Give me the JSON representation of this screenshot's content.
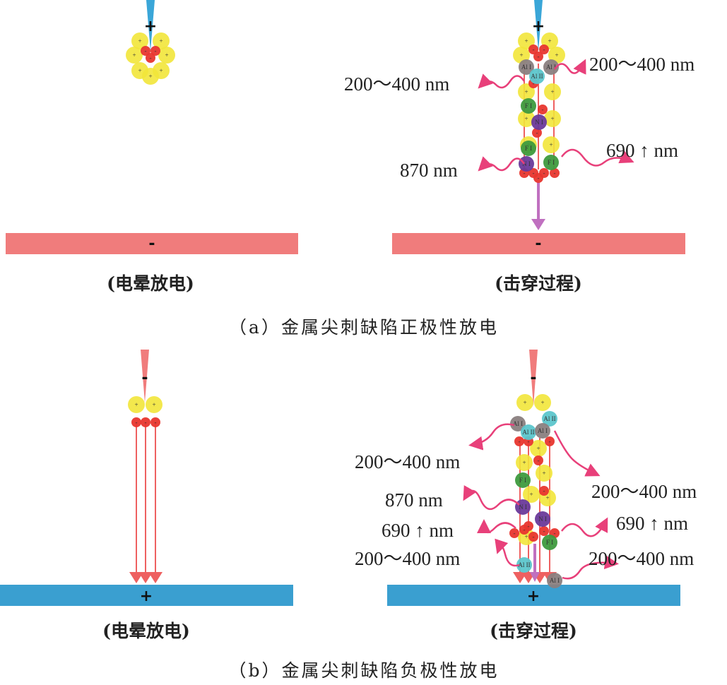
{
  "panel_a": {
    "title": "（a）金属尖刺缺陷正极性放电",
    "left_caption": "(电晕放电)",
    "right_caption": "(击穿过程)",
    "plate_sign": "-",
    "needle_sign": "+",
    "plate_color": "#f07c7c",
    "needle_color": "#3aa6d8",
    "labels": [
      "200～400 nm",
      "200～400 nm",
      "870 nm",
      "690 ↑ nm"
    ]
  },
  "panel_b": {
    "title": "（b）金属尖刺缺陷负极性放电",
    "left_caption": "(电晕放电)",
    "right_caption": "(击穿过程)",
    "plate_sign": "+",
    "needle_sign": "-",
    "plate_color": "#3a9fd0",
    "needle_color": "#f07c7c",
    "labels": [
      "200～400 nm",
      "200～400 nm",
      "870 nm",
      "690 ↑ nm",
      "690 ↑ nm",
      "200～400 nm",
      "200～400 nm"
    ]
  },
  "particles": {
    "al1": "Al I",
    "al2": "Al II",
    "f1": "F I",
    "n1": "N I"
  },
  "colors": {
    "positive_ion": "#f2e63a",
    "electron": "#e8362e",
    "al1": "#8a7f80",
    "al2": "#5cc6cc",
    "f1": "#3e9a3e",
    "n1": "#6a3a9a",
    "photon": "#e8407a",
    "arrow": "#c070c0"
  }
}
